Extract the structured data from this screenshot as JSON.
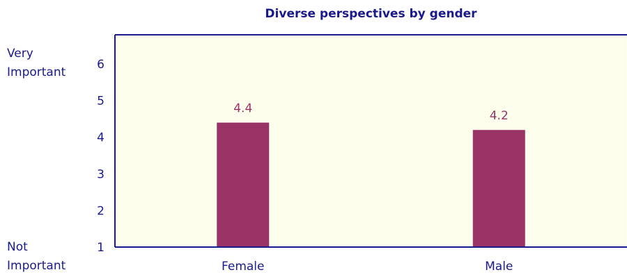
{
  "chart_data": {
    "type": "bar",
    "title": "Diverse perspectives by gender",
    "categories": [
      "Female",
      "Male"
    ],
    "values": [
      4.4,
      4.2
    ],
    "data_labels": [
      "4.4",
      "4.2"
    ],
    "ylim": [
      1,
      6.8
    ],
    "yticks": [
      "1",
      "2",
      "3",
      "4",
      "5",
      "6"
    ],
    "y_anchor_top": [
      "Very",
      "Important"
    ],
    "y_anchor_bottom": [
      "Not",
      "Important"
    ],
    "grid": false,
    "colors": {
      "bar": "#993366",
      "plot_bg": "#fffff0",
      "text": "#1a1a8c",
      "axis": "#1a1a8c",
      "label": "#993366"
    }
  }
}
